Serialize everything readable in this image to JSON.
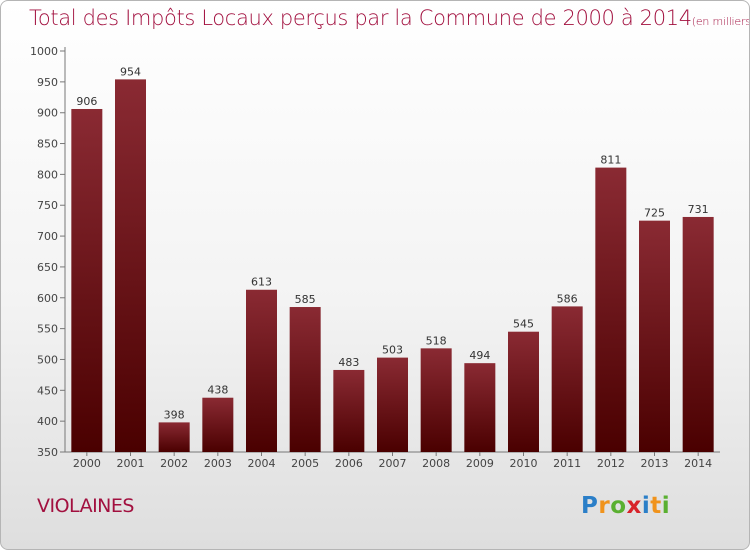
{
  "title": "Total des Impôts Locaux perçus par la Commune de 2000 à 2014",
  "unit_note": "(en milliers d'€)",
  "commune": "VIOLAINES",
  "logo": {
    "letters": [
      "P",
      "r",
      "o",
      "x",
      "i",
      "t",
      "i"
    ],
    "colors": [
      "#2b7fc8",
      "#f0931c",
      "#5ab031",
      "#d8232a",
      "#2b7fc8",
      "#f0931c",
      "#5ab031"
    ]
  },
  "colors": {
    "title": "#a2103f",
    "bar_top": "#8a2a33",
    "bar_bottom": "#4a0000"
  },
  "chart_data": {
    "type": "bar",
    "title": "Total des Impôts Locaux perçus par la Commune de 2000 à 2014",
    "xlabel": "",
    "ylabel": "",
    "categories": [
      "2000",
      "2001",
      "2002",
      "2003",
      "2004",
      "2005",
      "2006",
      "2007",
      "2008",
      "2009",
      "2010",
      "2011",
      "2012",
      "2013",
      "2014"
    ],
    "values": [
      906,
      954,
      398,
      438,
      613,
      585,
      483,
      503,
      518,
      494,
      545,
      586,
      811,
      725,
      731
    ],
    "ylim": [
      350,
      1000
    ],
    "yticks": [
      350,
      400,
      450,
      500,
      550,
      600,
      650,
      700,
      750,
      800,
      850,
      900,
      950,
      1000
    ],
    "grid": false,
    "legend": "none"
  }
}
